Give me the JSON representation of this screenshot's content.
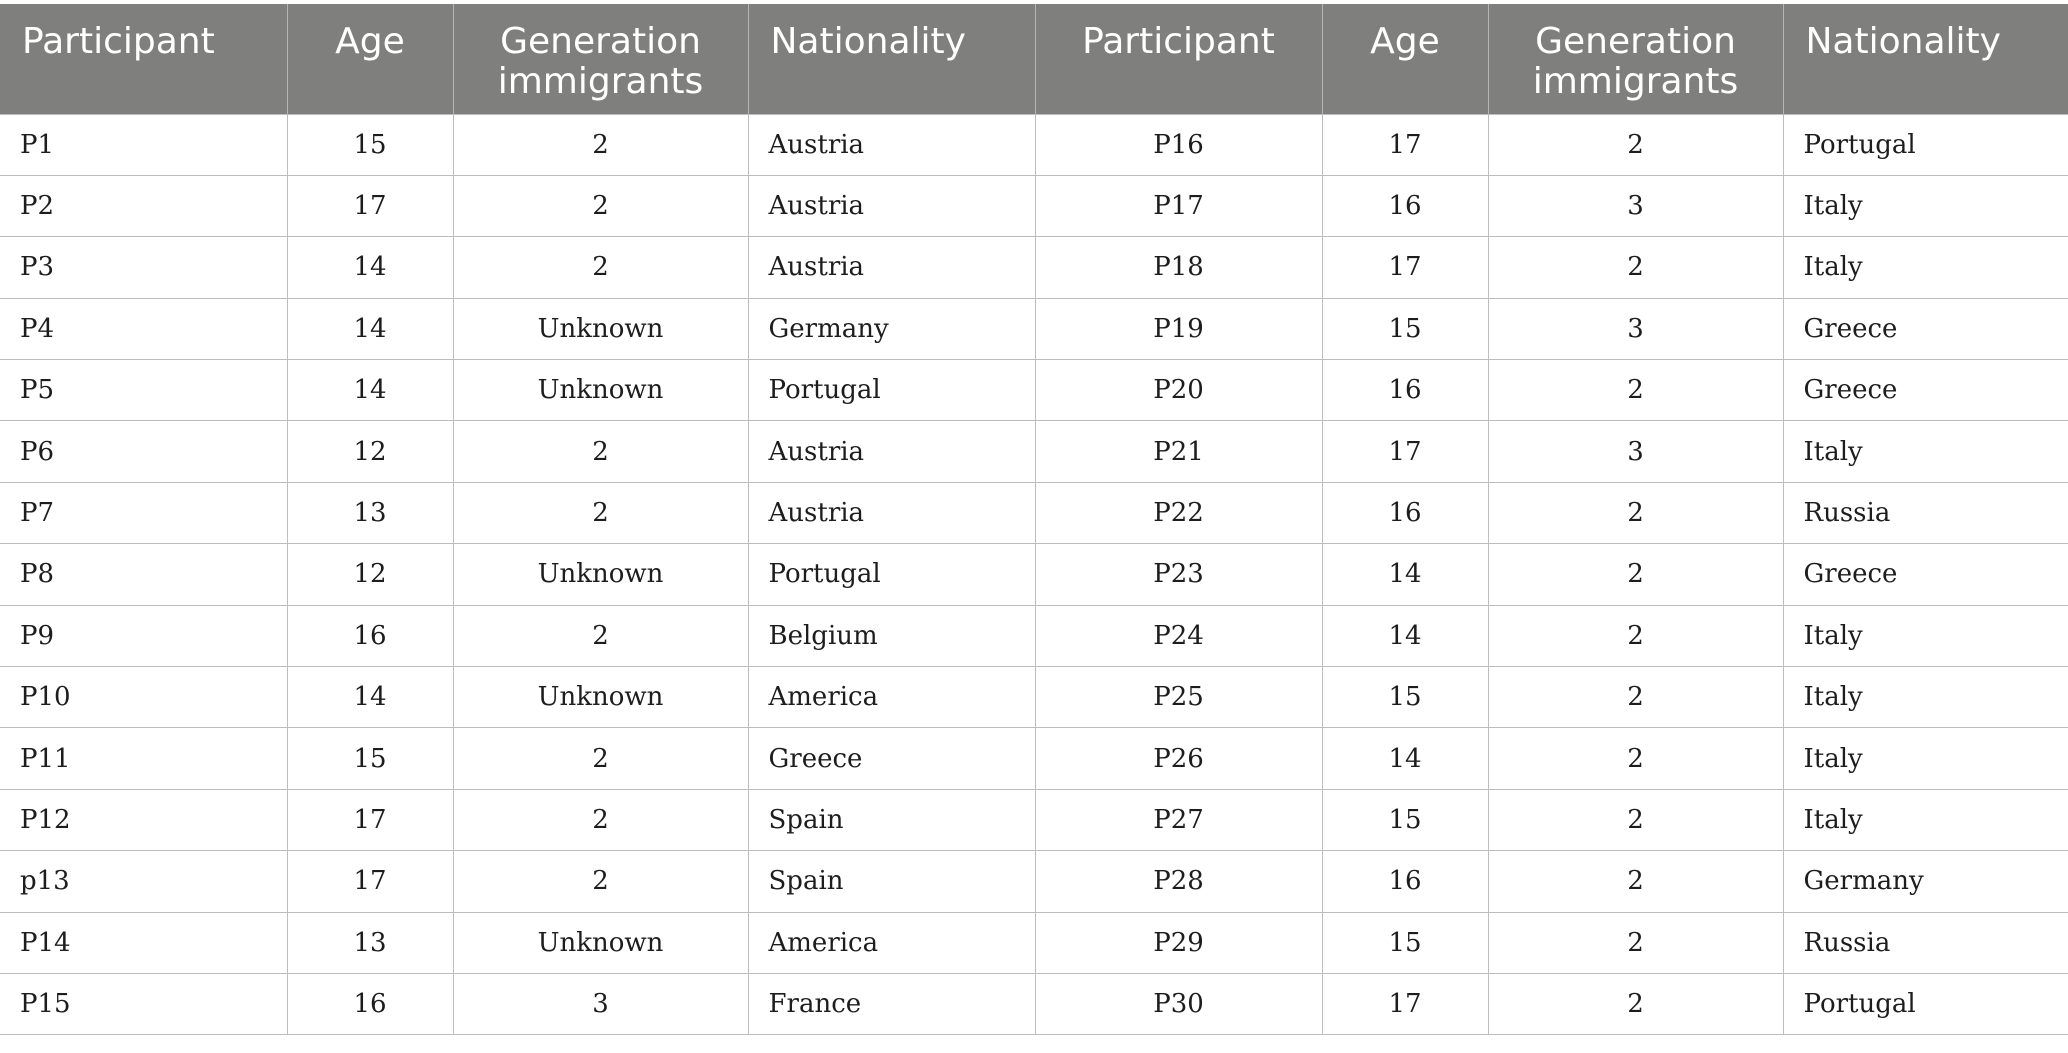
{
  "table": {
    "headers": [
      {
        "label": "Participant",
        "align": "left"
      },
      {
        "label": "Age",
        "align": "center"
      },
      {
        "label": "Generation immigrants",
        "align": "center"
      },
      {
        "label": "Nationality",
        "align": "left"
      },
      {
        "label": "Participant",
        "align": "center"
      },
      {
        "label": "Age",
        "align": "center"
      },
      {
        "label": "Generation immigrants",
        "align": "center"
      },
      {
        "label": "Nationality",
        "align": "left"
      }
    ],
    "rows": [
      [
        "P1",
        "15",
        "2",
        "Austria",
        "P16",
        "17",
        "2",
        "Portugal"
      ],
      [
        "P2",
        "17",
        "2",
        "Austria",
        "P17",
        "16",
        "3",
        "Italy"
      ],
      [
        "P3",
        "14",
        "2",
        "Austria",
        "P18",
        "17",
        "2",
        "Italy"
      ],
      [
        "P4",
        "14",
        "Unknown",
        "Germany",
        "P19",
        "15",
        "3",
        "Greece"
      ],
      [
        "P5",
        "14",
        "Unknown",
        "Portugal",
        "P20",
        "16",
        "2",
        "Greece"
      ],
      [
        "P6",
        "12",
        "2",
        "Austria",
        "P21",
        "17",
        "3",
        "Italy"
      ],
      [
        "P7",
        "13",
        "2",
        "Austria",
        "P22",
        "16",
        "2",
        "Russia"
      ],
      [
        "P8",
        "12",
        "Unknown",
        "Portugal",
        "P23",
        "14",
        "2",
        "Greece"
      ],
      [
        "P9",
        "16",
        "2",
        "Belgium",
        "P24",
        "14",
        "2",
        "Italy"
      ],
      [
        "P10",
        "14",
        "Unknown",
        "America",
        "P25",
        "15",
        "2",
        "Italy"
      ],
      [
        "P11",
        "15",
        "2",
        "Greece",
        "P26",
        "14",
        "2",
        "Italy"
      ],
      [
        "P12",
        "17",
        "2",
        "Spain",
        "P27",
        "15",
        "2",
        "Italy"
      ],
      [
        "p13",
        "17",
        "2",
        "Spain",
        "P28",
        "16",
        "2",
        "Germany"
      ],
      [
        "P14",
        "13",
        "Unknown",
        "America",
        "P29",
        "15",
        "2",
        "Russia"
      ],
      [
        "P15",
        "16",
        "3",
        "France",
        "P30",
        "17",
        "2",
        "Portugal"
      ]
    ]
  }
}
